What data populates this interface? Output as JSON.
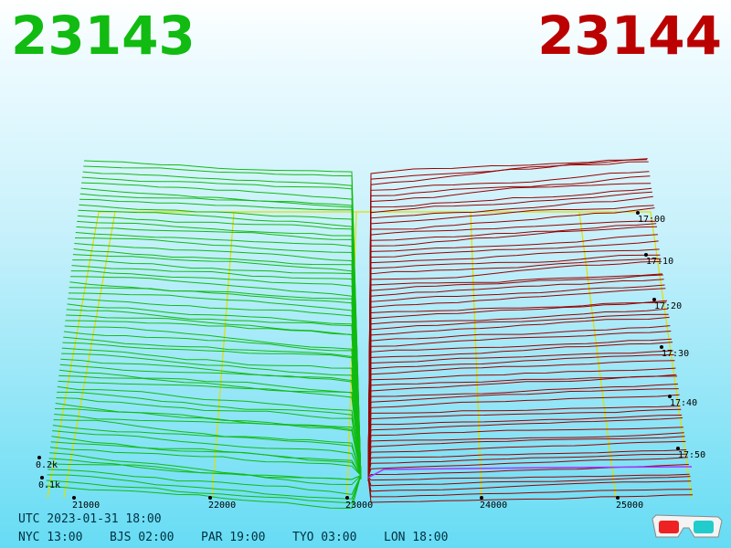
{
  "header": {
    "bid_price": "23143",
    "ask_price": "23144",
    "bid_color": "#11bb11",
    "ask_color": "#bb0000"
  },
  "footer": {
    "utc_line": "UTC 2023-01-31 18:00",
    "cities": [
      "NYC 13:00",
      "BJS 02:00",
      "PAR 19:00",
      "TYO 03:00",
      "LON 18:00"
    ]
  },
  "icons": {
    "glasses": "3d-glasses-icon"
  },
  "chart_data": {
    "type": "area",
    "title": "",
    "x_label": "",
    "y_label": "",
    "price_ticks": [
      "21000",
      "22000",
      "23000",
      "24000",
      "25000"
    ],
    "price_range": [
      20800,
      25400
    ],
    "time_ticks": [
      "17:00",
      "17:10",
      "17:20",
      "17:30",
      "17:40",
      "17:50"
    ],
    "depth_ticks": [
      "0.1k",
      "0.2k"
    ],
    "series": [
      {
        "side": "bid",
        "color": "#11bb11",
        "levels": 60
      },
      {
        "side": "ask",
        "color": "#990000",
        "levels": 60
      }
    ],
    "latest_line_color": "#aa33ff",
    "grid_color": "#e0e000"
  }
}
